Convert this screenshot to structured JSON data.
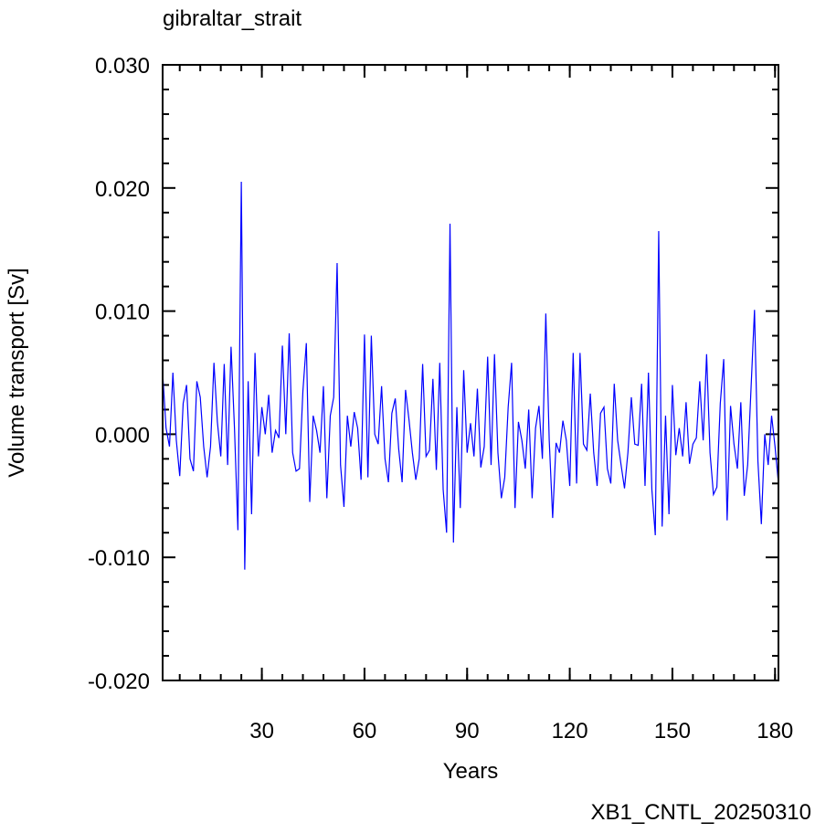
{
  "chart_data": {
    "type": "line",
    "title": "gibraltar_strait",
    "xlabel": "Years",
    "ylabel": "Volume transport [Sv]",
    "annotation": "XB1_CNTL_20250310",
    "color": "#0000ff",
    "annotation_color": "#0000ff",
    "x": [
      1,
      2,
      3,
      4,
      5,
      6,
      7,
      8,
      9,
      10,
      11,
      12,
      13,
      14,
      15,
      16,
      17,
      18,
      19,
      20,
      21,
      22,
      23,
      24,
      25,
      26,
      27,
      28,
      29,
      30,
      31,
      32,
      33,
      34,
      35,
      36,
      37,
      38,
      39,
      40,
      41,
      42,
      43,
      44,
      45,
      46,
      47,
      48,
      49,
      50,
      51,
      52,
      53,
      54,
      55,
      56,
      57,
      58,
      59,
      60,
      61,
      62,
      63,
      64,
      65,
      66,
      67,
      68,
      69,
      70,
      71,
      72,
      73,
      74,
      75,
      76,
      77,
      78,
      79,
      80,
      81,
      82,
      83,
      84,
      85,
      86,
      87,
      88,
      89,
      90,
      91,
      92,
      93,
      94,
      95,
      96,
      97,
      98,
      99,
      100,
      101,
      102,
      103,
      104,
      105,
      106,
      107,
      108,
      109,
      110,
      111,
      112,
      113,
      114,
      115,
      116,
      117,
      118,
      119,
      120,
      121,
      122,
      123,
      124,
      125,
      126,
      127,
      128,
      129,
      130,
      131,
      132,
      133,
      134,
      135,
      136,
      137,
      138,
      139,
      140,
      141,
      142,
      143,
      144,
      145,
      146,
      147,
      148,
      149,
      150,
      151,
      152,
      153,
      154,
      155,
      156,
      157,
      158,
      159,
      160,
      161,
      162,
      163,
      164,
      165,
      166,
      167,
      168,
      169,
      170,
      171,
      172,
      173,
      174,
      175,
      176,
      177,
      178,
      179,
      180,
      181
    ],
    "values": [
      0.005,
      0.0005,
      -0.001,
      0.005,
      -0.0005,
      -0.0034,
      0.0025,
      0.004,
      -0.002,
      -0.003,
      0.0043,
      0.003,
      -0.001,
      -0.0035,
      -0.001,
      0.0058,
      0.001,
      -0.0018,
      0.0057,
      -0.0025,
      0.0071,
      0.0005,
      -0.0078,
      0.0205,
      -0.011,
      0.0043,
      -0.0065,
      0.0066,
      -0.0018,
      0.0022,
      0.0,
      0.0032,
      -0.0015,
      0.0003,
      -0.0003,
      0.0072,
      0.0,
      0.0082,
      -0.0015,
      -0.003,
      -0.0028,
      0.0035,
      0.0074,
      -0.0055,
      0.0015,
      0.0003,
      -0.0015,
      0.0039,
      -0.0052,
      0.0015,
      0.003,
      0.0139,
      -0.0025,
      -0.0059,
      0.0015,
      -0.001,
      0.0018,
      0.0005,
      -0.0037,
      0.0081,
      -0.0035,
      0.008,
      0.0,
      -0.0008,
      0.0039,
      -0.002,
      -0.0039,
      0.0017,
      0.0029,
      -0.0012,
      -0.0039,
      0.0036,
      0.0012,
      -0.0015,
      -0.0037,
      -0.002,
      0.0057,
      -0.0018,
      -0.0013,
      0.0045,
      -0.0029,
      0.0058,
      -0.0045,
      -0.008,
      0.0171,
      -0.0088,
      0.0022,
      -0.006,
      0.0052,
      -0.0015,
      0.0009,
      -0.0018,
      0.0037,
      -0.0027,
      -0.001,
      0.0063,
      -0.0025,
      0.0065,
      -0.0015,
      -0.0052,
      -0.0035,
      0.0022,
      0.0058,
      -0.006,
      0.001,
      -0.0005,
      -0.0028,
      0.002,
      -0.0052,
      0.0005,
      0.0023,
      -0.002,
      0.0098,
      -0.0005,
      -0.0068,
      -0.0007,
      -0.0015,
      0.0011,
      -0.0005,
      -0.0042,
      0.0066,
      -0.004,
      0.0066,
      -0.0008,
      -0.0013,
      0.0033,
      -0.0015,
      -0.0042,
      0.0017,
      0.0022,
      -0.0028,
      -0.004,
      0.0041,
      -0.0005,
      -0.0025,
      -0.0044,
      -0.0015,
      0.003,
      -0.0008,
      -0.0009,
      0.0041,
      -0.0042,
      0.005,
      -0.0045,
      -0.0082,
      0.0165,
      -0.0075,
      0.0015,
      -0.0065,
      0.004,
      -0.0017,
      0.0005,
      -0.0018,
      0.0026,
      -0.0024,
      -0.0008,
      -0.0003,
      0.0043,
      -0.0005,
      0.0065,
      -0.0015,
      -0.0049,
      -0.0043,
      0.0025,
      0.0061,
      -0.007,
      0.0023,
      -0.0008,
      -0.0028,
      0.0026,
      -0.005,
      -0.0025,
      0.0038,
      0.0101,
      -0.0022,
      -0.0073,
      0.0,
      -0.0025,
      0.0015,
      -0.001,
      -0.004
    ],
    "xlim": [
      1,
      181
    ],
    "xticks": [
      30,
      60,
      90,
      120,
      150,
      180
    ],
    "ylim": [
      -0.02,
      0.03
    ],
    "yticks": [
      {
        "value": -0.02,
        "label": "-0.020"
      },
      {
        "value": -0.01,
        "label": "-0.010"
      },
      {
        "value": 0,
        "label": "0.000"
      },
      {
        "value": 0.01,
        "label": "0.010"
      },
      {
        "value": 0.02,
        "label": "0.020"
      },
      {
        "value": 0.03,
        "label": "0.030"
      }
    ]
  }
}
